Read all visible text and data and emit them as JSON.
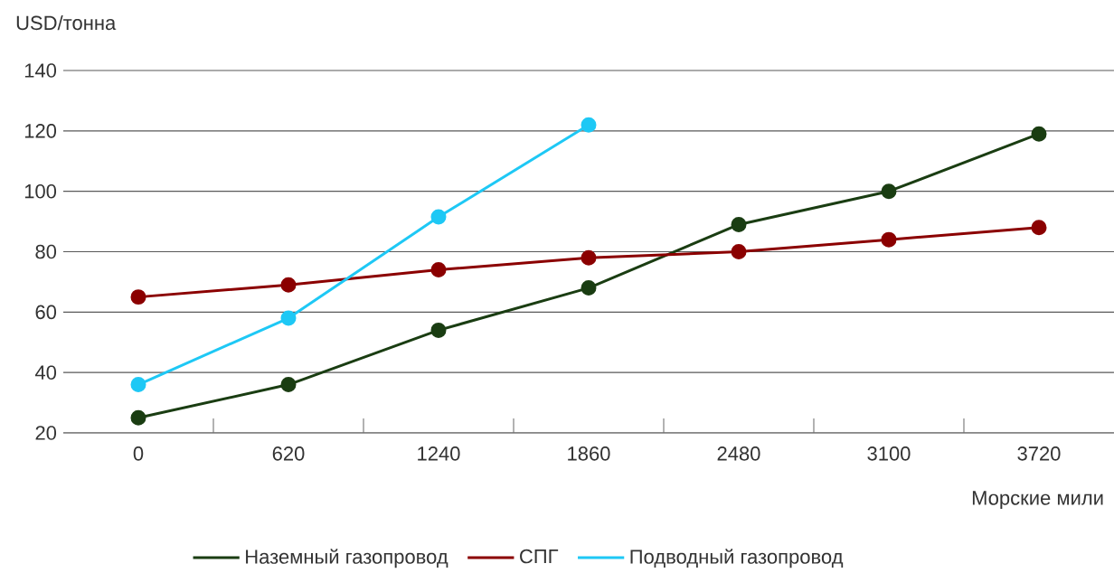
{
  "chart_data": {
    "type": "line",
    "ylabel": "USD/тонна",
    "xlabel": "Морские мили",
    "categories": [
      "0",
      "620",
      "1240",
      "1860",
      "2480",
      "3100",
      "3720"
    ],
    "ylim": [
      20,
      140
    ],
    "yticks": [
      20,
      40,
      60,
      80,
      100,
      120,
      140
    ],
    "grid": "y",
    "legend": "bottom",
    "marker": "circle",
    "line_style": "solid",
    "series": [
      {
        "name": "Наземный газопровод",
        "color": "#1a3d12",
        "values": [
          25,
          36,
          54,
          68,
          89,
          100,
          119
        ]
      },
      {
        "name": "СПГ",
        "color": "#8b0000",
        "values": [
          65,
          69,
          74,
          78,
          80,
          84,
          88
        ]
      },
      {
        "name": "Подводный газопровод",
        "color": "#1ec8f5",
        "values": [
          36,
          58,
          91.5,
          122,
          null,
          null,
          null
        ]
      }
    ]
  }
}
